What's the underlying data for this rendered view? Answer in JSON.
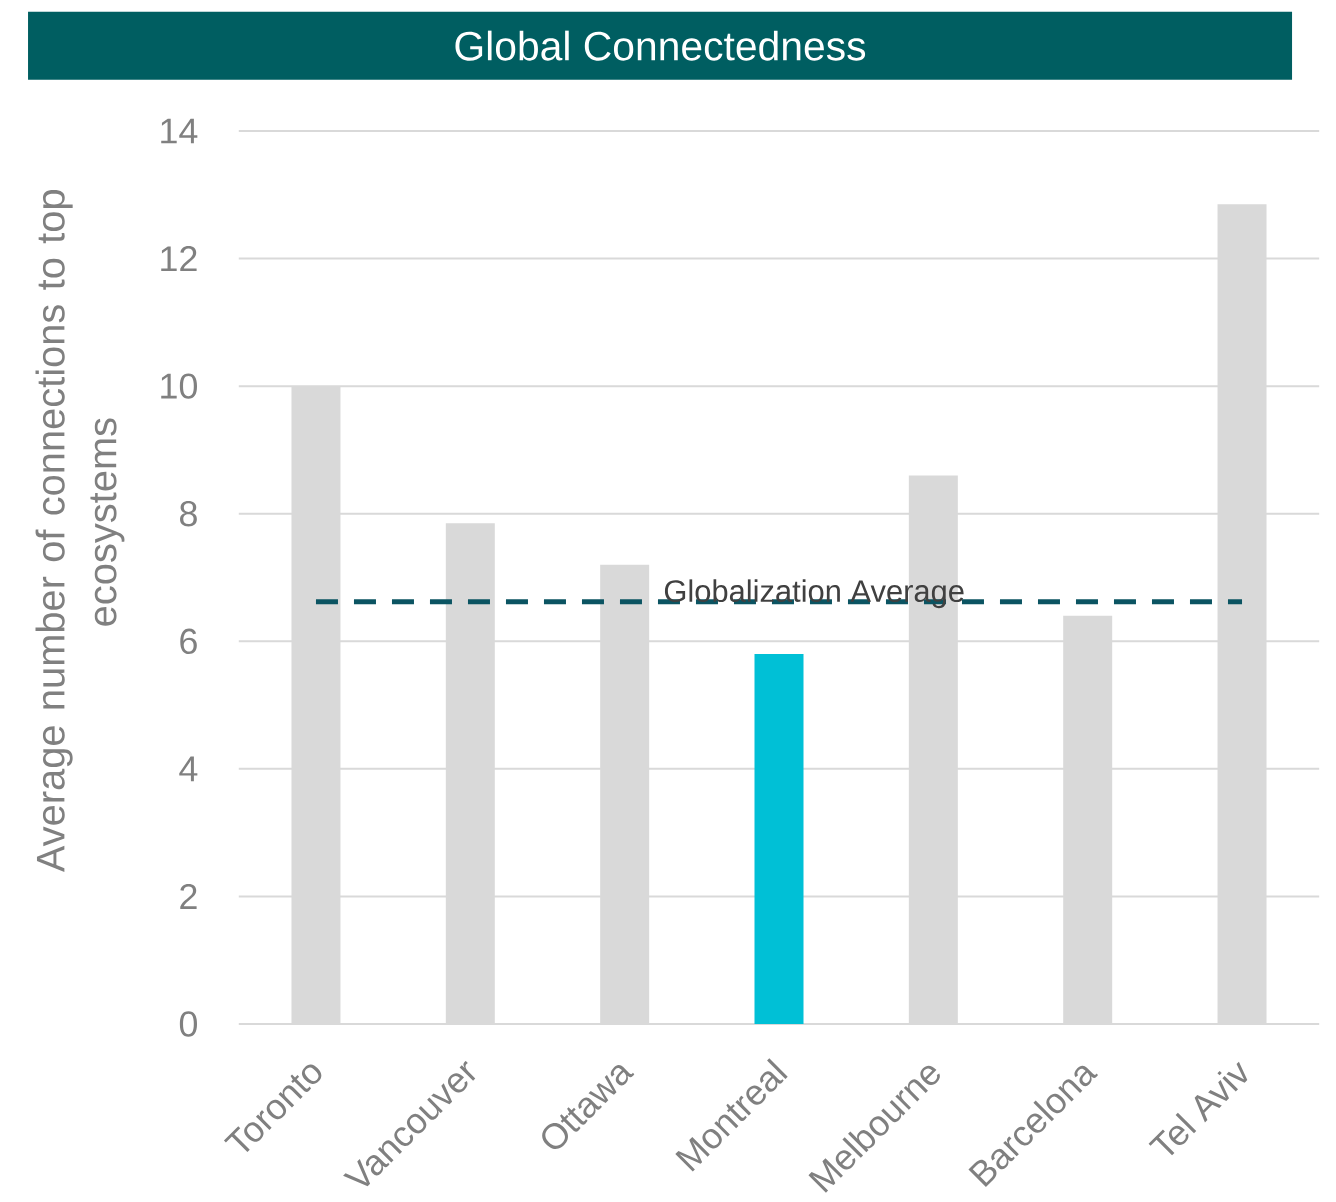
{
  "chart_data": {
    "type": "bar",
    "title": "Global Connectedness",
    "ylabel": "Average number of connections to top ecosystems",
    "categories": [
      "Toronto",
      "Vancouver",
      "Ottawa",
      "Montreal",
      "Melbourne",
      "Barcelona",
      "Tel Aviv"
    ],
    "values": [
      10,
      7.85,
      7.2,
      5.8,
      8.6,
      6.4,
      12.85
    ],
    "colors": [
      "#d9d9d9",
      "#d9d9d9",
      "#d9d9d9",
      "#00c0d6",
      "#d9d9d9",
      "#d9d9d9",
      "#d9d9d9"
    ],
    "ylim": [
      0,
      14
    ],
    "yticks": [
      0,
      2,
      4,
      6,
      8,
      10,
      12,
      14
    ],
    "grid": "y",
    "ref_lines": [
      {
        "axis": "y",
        "value": 6.62,
        "label": "Globalization Average",
        "color": "#0b5462",
        "line_style": "dashed"
      }
    ]
  }
}
